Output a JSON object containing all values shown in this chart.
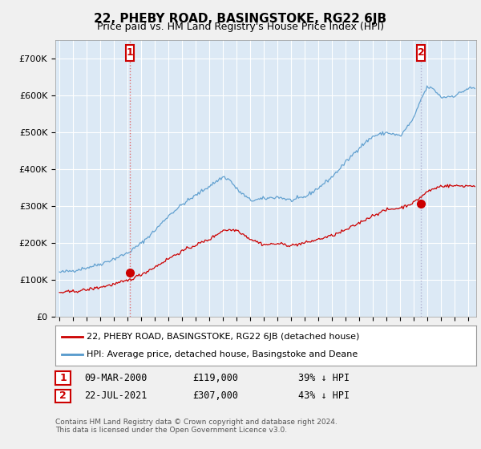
{
  "title": "22, PHEBY ROAD, BASINGSTOKE, RG22 6JB",
  "subtitle": "Price paid vs. HM Land Registry's House Price Index (HPI)",
  "background_color": "#f0f0f0",
  "plot_bg_color": "#dce9f5",
  "hpi_color": "#5599cc",
  "price_color": "#cc0000",
  "vline1_color": "#e06060",
  "vline2_color": "#aaaacc",
  "legend_line1": "22, PHEBY ROAD, BASINGSTOKE, RG22 6JB (detached house)",
  "legend_line2": "HPI: Average price, detached house, Basingstoke and Deane",
  "annotation1_date": "09-MAR-2000",
  "annotation1_price": "£119,000",
  "annotation1_pct": "39% ↓ HPI",
  "annotation2_date": "22-JUL-2021",
  "annotation2_price": "£307,000",
  "annotation2_pct": "43% ↓ HPI",
  "footer": "Contains HM Land Registry data © Crown copyright and database right 2024.\nThis data is licensed under the Open Government Licence v3.0.",
  "ylim_max": 750000,
  "ylim_min": 0,
  "sale1_x": 2000.19,
  "sale1_price": 119000,
  "sale2_x": 2021.54,
  "sale2_price": 307000
}
